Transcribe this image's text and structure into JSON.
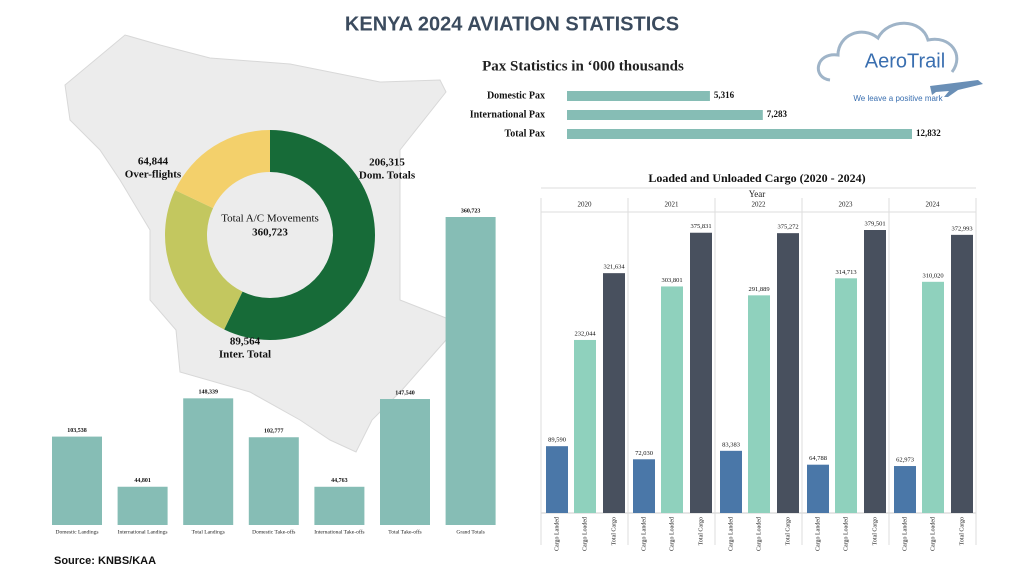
{
  "title": "KENYA 2024 AVIATION STATISTICS",
  "logo": {
    "name": "AeroTrail",
    "tagline": "We leave a positive mark"
  },
  "source": "Source: KNBS/KAA",
  "chart_data": [
    {
      "type": "donut",
      "title": "Total A/C Movements",
      "total": {
        "value": 360723,
        "label": "360,723"
      },
      "categories": [
        "Dom. Totals",
        "Inter. Total",
        "Over-flights"
      ],
      "values": [
        206315,
        89564,
        64844
      ],
      "value_labels": [
        "206,315",
        "89,564",
        "64,844"
      ],
      "colors": [
        "#176b38",
        "#c3c75f",
        "#f3d06b"
      ]
    },
    {
      "type": "barh",
      "title": "Pax Statistics in ‘000 thousands",
      "categories": [
        "Domestic Pax",
        "International Pax",
        "Total Pax"
      ],
      "values": [
        5316,
        7283,
        12832
      ],
      "value_labels": [
        "5,316",
        "7,283",
        "12,832"
      ],
      "color": "#86bdb5"
    },
    {
      "type": "bar",
      "categories": [
        "Domestic Landings",
        "International Landings",
        "Total Landings",
        "Domestic Take-offs",
        "International Take-offs",
        "Total Take-offs",
        "Grand Totals"
      ],
      "values": [
        103538,
        44801,
        148339,
        102777,
        44763,
        147540,
        360723
      ],
      "value_labels": [
        "103,538",
        "44,801",
        "148,339",
        "102,777",
        "44,763",
        "147,540",
        "360,723"
      ],
      "color": "#86bdb5"
    },
    {
      "type": "groupedbar",
      "title": "Loaded and Unloaded Cargo (2020 - 2024)",
      "group_label": "Year",
      "categories": [
        "2020",
        "2021",
        "2022",
        "2023",
        "2024"
      ],
      "series": [
        {
          "name": "Cargo Landed",
          "color": "#4a77a8",
          "values": [
            89590,
            72030,
            83383,
            64788,
            62973
          ],
          "value_labels": [
            "89,590",
            "72,030",
            "83,383",
            "64,788",
            "62,973"
          ]
        },
        {
          "name": "Cargo Loaded",
          "color": "#8fd1bd",
          "values": [
            232044,
            303801,
            291889,
            314713,
            310020
          ],
          "value_labels": [
            "232,044",
            "303,801",
            "291,889",
            "314,713",
            "310,020"
          ]
        },
        {
          "name": "Total Cargo",
          "color": "#48505e",
          "values": [
            321634,
            375831,
            375272,
            379501,
            372993
          ],
          "value_labels": [
            "321,634",
            "375,831",
            "375,272",
            "379,501",
            "372,993"
          ]
        }
      ]
    }
  ]
}
